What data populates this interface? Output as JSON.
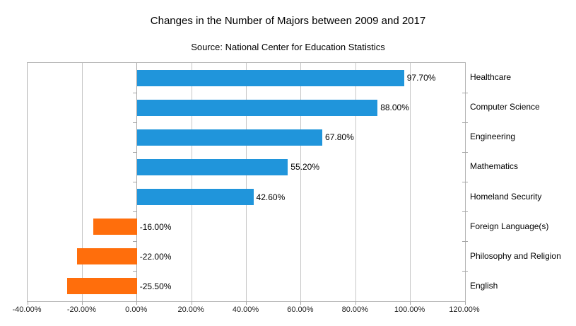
{
  "chart_data": {
    "type": "bar",
    "orientation": "horizontal",
    "title": "Changes in the Number of Majors between 2009 and 2017",
    "subtitle": "Source: National Center for Education Statistics",
    "categories": [
      "Healthcare",
      "Computer Science",
      "Engineering",
      "Mathematics",
      "Homeland Security",
      "Foreign Language(s)",
      "Philosophy and Religion",
      "English"
    ],
    "values": [
      97.7,
      88.0,
      67.8,
      55.2,
      42.6,
      -16.0,
      -22.0,
      -25.5
    ],
    "value_labels": [
      "97.70%",
      "88.00%",
      "67.80%",
      "55.20%",
      "42.60%",
      "-16.00%",
      "-22.00%",
      "-25.50%"
    ],
    "x_tick_labels": [
      "-40.00%",
      "-20.00%",
      "0.00%",
      "20.00%",
      "40.00%",
      "60.00%",
      "80.00%",
      "100.00%",
      "120.00%"
    ],
    "x_ticks": [
      -40,
      -20,
      0,
      20,
      40,
      60,
      80,
      100,
      120
    ],
    "xlim": [
      -40,
      120
    ],
    "grid": "vertical",
    "legend": "none",
    "colors": {
      "positive": "#2095db",
      "negative": "#ff6e0c",
      "gridline": "#c6c6c6",
      "axis": "#a6a6a6",
      "border": "#b3b3b3",
      "text": "#000000"
    }
  }
}
